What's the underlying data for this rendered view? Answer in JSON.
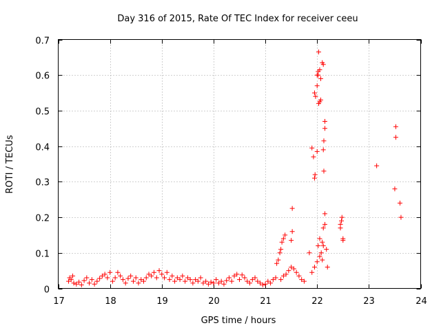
{
  "chart_data": {
    "type": "scatter",
    "title": "Day 316 of 2015, Rate Of TEC Index for receiver ceeu",
    "xlabel": "GPS time / hours",
    "ylabel": "ROTI / TECUs",
    "xlim": [
      17,
      24
    ],
    "ylim": [
      0,
      0.7
    ],
    "x_ticks": [
      "17",
      "18",
      "19",
      "20",
      "21",
      "22",
      "23",
      "24"
    ],
    "y_ticks": [
      "0",
      "0.1",
      "0.2",
      "0.3",
      "0.4",
      "0.5",
      "0.6",
      "0.7"
    ],
    "grid": true,
    "marker": "plus",
    "color": "#ff0000",
    "series": [
      {
        "points": [
          [
            17.2,
            0.02
          ],
          [
            17.22,
            0.03
          ],
          [
            17.25,
            0.025
          ],
          [
            17.28,
            0.035
          ],
          [
            17.3,
            0.015
          ],
          [
            17.35,
            0.012
          ],
          [
            17.4,
            0.018
          ],
          [
            17.45,
            0.01
          ],
          [
            17.5,
            0.022
          ],
          [
            17.55,
            0.03
          ],
          [
            17.6,
            0.015
          ],
          [
            17.65,
            0.025
          ],
          [
            17.7,
            0.012
          ],
          [
            17.75,
            0.02
          ],
          [
            17.8,
            0.028
          ],
          [
            17.85,
            0.035
          ],
          [
            17.9,
            0.04
          ],
          [
            17.95,
            0.03
          ],
          [
            18.0,
            0.045
          ],
          [
            18.05,
            0.02
          ],
          [
            18.1,
            0.03
          ],
          [
            18.15,
            0.045
          ],
          [
            18.2,
            0.035
          ],
          [
            18.25,
            0.025
          ],
          [
            18.3,
            0.015
          ],
          [
            18.35,
            0.028
          ],
          [
            18.4,
            0.035
          ],
          [
            18.45,
            0.02
          ],
          [
            18.5,
            0.03
          ],
          [
            18.55,
            0.015
          ],
          [
            18.6,
            0.025
          ],
          [
            18.65,
            0.02
          ],
          [
            18.7,
            0.03
          ],
          [
            18.75,
            0.04
          ],
          [
            18.8,
            0.035
          ],
          [
            18.85,
            0.045
          ],
          [
            18.9,
            0.03
          ],
          [
            18.95,
            0.05
          ],
          [
            19.0,
            0.04
          ],
          [
            19.05,
            0.03
          ],
          [
            19.1,
            0.045
          ],
          [
            19.15,
            0.025
          ],
          [
            19.2,
            0.035
          ],
          [
            19.25,
            0.02
          ],
          [
            19.3,
            0.03
          ],
          [
            19.35,
            0.025
          ],
          [
            19.4,
            0.035
          ],
          [
            19.45,
            0.02
          ],
          [
            19.5,
            0.03
          ],
          [
            19.55,
            0.025
          ],
          [
            19.6,
            0.015
          ],
          [
            19.65,
            0.025
          ],
          [
            19.7,
            0.02
          ],
          [
            19.75,
            0.03
          ],
          [
            19.8,
            0.015
          ],
          [
            19.85,
            0.02
          ],
          [
            19.9,
            0.012
          ],
          [
            19.95,
            0.018
          ],
          [
            20.0,
            0.015
          ],
          [
            20.05,
            0.025
          ],
          [
            20.1,
            0.015
          ],
          [
            20.15,
            0.02
          ],
          [
            20.2,
            0.012
          ],
          [
            20.25,
            0.022
          ],
          [
            20.3,
            0.03
          ],
          [
            20.35,
            0.02
          ],
          [
            20.4,
            0.035
          ],
          [
            20.45,
            0.04
          ],
          [
            20.5,
            0.025
          ],
          [
            20.55,
            0.038
          ],
          [
            20.6,
            0.03
          ],
          [
            20.65,
            0.02
          ],
          [
            20.7,
            0.015
          ],
          [
            20.75,
            0.025
          ],
          [
            20.8,
            0.03
          ],
          [
            20.85,
            0.02
          ],
          [
            20.9,
            0.015
          ],
          [
            20.95,
            0.01
          ],
          [
            21.0,
            0.012
          ],
          [
            21.05,
            0.02
          ],
          [
            21.1,
            0.015
          ],
          [
            21.15,
            0.025
          ],
          [
            21.2,
            0.03
          ],
          [
            21.22,
            0.07
          ],
          [
            21.25,
            0.08
          ],
          [
            21.28,
            0.1
          ],
          [
            21.3,
            0.11
          ],
          [
            21.32,
            0.13
          ],
          [
            21.35,
            0.14
          ],
          [
            21.38,
            0.15
          ],
          [
            21.3,
            0.025
          ],
          [
            21.35,
            0.035
          ],
          [
            21.4,
            0.04
          ],
          [
            21.45,
            0.05
          ],
          [
            21.5,
            0.06
          ],
          [
            21.55,
            0.055
          ],
          [
            21.6,
            0.045
          ],
          [
            21.65,
            0.035
          ],
          [
            21.7,
            0.025
          ],
          [
            21.75,
            0.02
          ],
          [
            21.5,
            0.135
          ],
          [
            21.52,
            0.16
          ],
          [
            21.52,
            0.225
          ],
          [
            21.85,
            0.1
          ],
          [
            21.9,
            0.045
          ],
          [
            21.95,
            0.06
          ],
          [
            22.0,
            0.075
          ],
          [
            22.02,
            0.12
          ],
          [
            22.05,
            0.14
          ],
          [
            22.1,
            0.13
          ],
          [
            22.12,
            0.17
          ],
          [
            22.15,
            0.18
          ],
          [
            22.15,
            0.21
          ],
          [
            22.18,
            0.11
          ],
          [
            22.2,
            0.06
          ],
          [
            22.05,
            0.09
          ],
          [
            22.08,
            0.1
          ],
          [
            22.1,
            0.08
          ],
          [
            22.12,
            0.12
          ],
          [
            21.9,
            0.395
          ],
          [
            21.93,
            0.37
          ],
          [
            21.95,
            0.31
          ],
          [
            21.96,
            0.32
          ],
          [
            22.0,
            0.385
          ],
          [
            21.95,
            0.55
          ],
          [
            21.97,
            0.54
          ],
          [
            22.0,
            0.57
          ],
          [
            22.02,
            0.6
          ],
          [
            22.03,
            0.52
          ],
          [
            22.05,
            0.525
          ],
          [
            22.07,
            0.53
          ],
          [
            22.0,
            0.6
          ],
          [
            22.02,
            0.61
          ],
          [
            22.05,
            0.615
          ],
          [
            22.07,
            0.59
          ],
          [
            22.1,
            0.635
          ],
          [
            22.12,
            0.63
          ],
          [
            22.03,
            0.665
          ],
          [
            22.12,
            0.39
          ],
          [
            22.13,
            0.415
          ],
          [
            22.15,
            0.45
          ],
          [
            22.15,
            0.47
          ],
          [
            22.13,
            0.33
          ],
          [
            22.45,
            0.18
          ],
          [
            22.47,
            0.19
          ],
          [
            22.48,
            0.2
          ],
          [
            22.45,
            0.17
          ],
          [
            22.5,
            0.135
          ],
          [
            22.5,
            0.14
          ],
          [
            23.15,
            0.345
          ],
          [
            23.5,
            0.28
          ],
          [
            23.52,
            0.455
          ],
          [
            23.52,
            0.425
          ],
          [
            23.6,
            0.24
          ],
          [
            23.62,
            0.2
          ]
        ]
      }
    ]
  }
}
